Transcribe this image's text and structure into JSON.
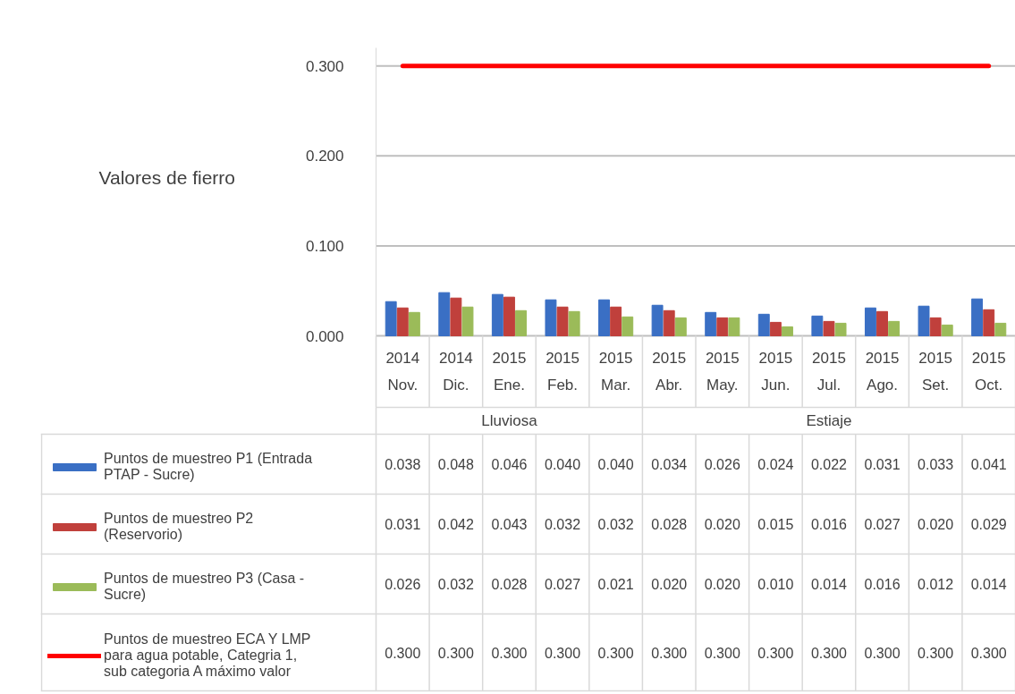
{
  "chart_data": {
    "type": "bar",
    "ylabel": "Valores de fierro",
    "categories": [
      "2014 Nov.",
      "2014 Dic.",
      "2015 Ene.",
      "2015 Feb.",
      "2015 Mar.",
      "2015 Abr.",
      "2015 May.",
      "2015 Jun.",
      "2015 Jul.",
      "2015 Ago.",
      "2015 Set.",
      "2015 Oct."
    ],
    "series": [
      {
        "name": "Puntos de muestreo P1 (Entrada PTAP - Sucre)",
        "color": "#3a6fc4",
        "values": [
          0.038,
          0.048,
          0.046,
          0.04,
          0.04,
          0.034,
          0.026,
          0.024,
          0.022,
          0.031,
          0.033,
          0.041
        ],
        "value_labels": [
          "0.038",
          "0.048",
          "0.046",
          "0.040",
          "0.040",
          "0.034",
          "0.026",
          "0.024",
          "0.022",
          "0.031",
          "0.033",
          "0.041"
        ]
      },
      {
        "name": "Puntos de muestreo P2 (Reservorio)",
        "color": "#c0403c",
        "values": [
          0.031,
          0.042,
          0.043,
          0.032,
          0.032,
          0.028,
          0.02,
          0.015,
          0.016,
          0.027,
          0.02,
          0.029
        ],
        "value_labels": [
          "0.031",
          "0.042",
          "0.043",
          "0.032",
          "0.032",
          "0.028",
          "0.020",
          "0.015",
          "0.016",
          "0.027",
          "0.020",
          "0.029"
        ]
      },
      {
        "name": "Puntos de muestreo P3 (Casa - Sucre)",
        "color": "#9bbb59",
        "values": [
          0.026,
          0.032,
          0.028,
          0.027,
          0.021,
          0.02,
          0.02,
          0.01,
          0.014,
          0.016,
          0.012,
          0.014
        ],
        "value_labels": [
          "0.026",
          "0.032",
          "0.028",
          "0.027",
          "0.021",
          "0.020",
          "0.020",
          "0.010",
          "0.014",
          "0.016",
          "0.012",
          "0.014"
        ]
      },
      {
        "name": "Puntos de muestreo ECA Y LMP para agua potable, Categria 1, sub categoria A máximo valor",
        "type": "line",
        "color": "#ff0000",
        "values": [
          0.3,
          0.3,
          0.3,
          0.3,
          0.3,
          0.3,
          0.3,
          0.3,
          0.3,
          0.3,
          0.3,
          0.3
        ],
        "value_labels": [
          "0.300",
          "0.300",
          "0.300",
          "0.300",
          "0.300",
          "0.300",
          "0.300",
          "0.300",
          "0.300",
          "0.300",
          "0.300",
          "0.300"
        ]
      }
    ],
    "annotations": [
      "Lluviosa",
      "Estiaje"
    ],
    "ylim": [
      0,
      0.32
    ],
    "yticks": [
      {
        "value": 0,
        "label": "0.000"
      },
      {
        "value": 0.1,
        "label": "0.100"
      },
      {
        "value": 0.2,
        "label": "0.200"
      },
      {
        "value": 0.3,
        "label": "0.300"
      }
    ],
    "grid": "y",
    "legend": "bottom"
  }
}
